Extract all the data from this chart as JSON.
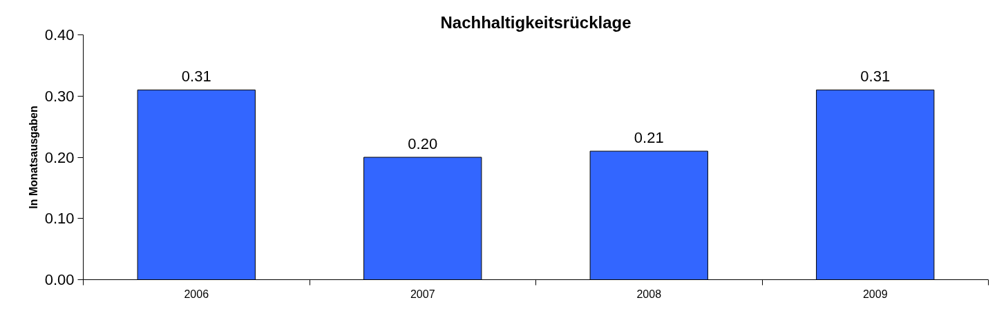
{
  "chart_data": {
    "type": "bar",
    "title": "Nachhaltigkeitsrücklage",
    "ylabel": "In Monatsausgaben",
    "categories": [
      "2006",
      "2007",
      "2008",
      "2009"
    ],
    "values": [
      0.31,
      0.2,
      0.21,
      0.31
    ],
    "value_labels": [
      "0.31",
      "0.20",
      "0.21",
      "0.31"
    ],
    "color": "#3366ff",
    "ylim": [
      0,
      0.4
    ],
    "yticks": [
      {
        "value": 0,
        "label": "0.00"
      },
      {
        "value": 0.1,
        "label": "0.10"
      },
      {
        "value": 0.2,
        "label": "0.20"
      },
      {
        "value": 0.3,
        "label": "0.30"
      },
      {
        "value": 0.4,
        "label": "0.40"
      }
    ],
    "grid": false
  }
}
